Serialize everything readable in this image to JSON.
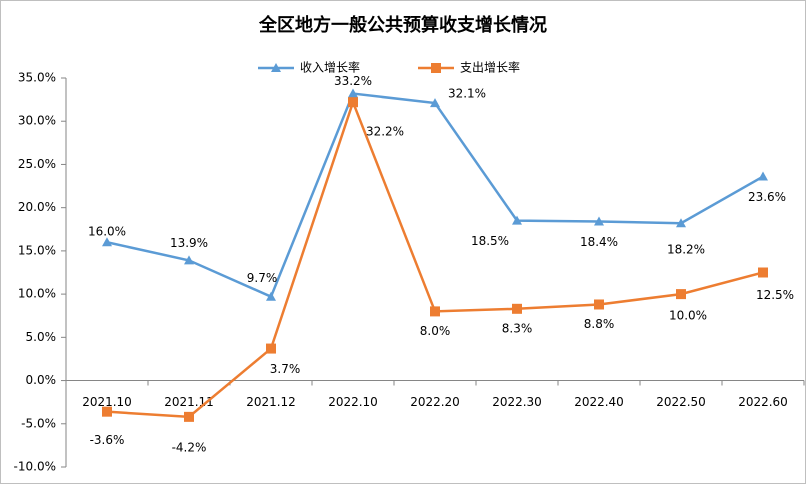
{
  "chart_data": {
    "type": "line",
    "title": "全区地方一般公共预算收支增长情况",
    "categories": [
      "2021.10",
      "2021.11",
      "2021.12",
      "2022.10",
      "2022.20",
      "2022.30",
      "2022.40",
      "2022.50",
      "2022.60"
    ],
    "series": [
      {
        "name": "收入增长率",
        "color": "#5b9bd5",
        "marker": "triangle",
        "values": [
          16.0,
          13.9,
          9.7,
          33.2,
          32.1,
          18.5,
          18.4,
          18.2,
          23.6
        ],
        "value_labels": [
          "16.0%",
          "13.9%",
          "9.7%",
          "33.2%",
          "32.1%",
          "18.5%",
          "18.4%",
          "18.2%",
          "23.6%"
        ]
      },
      {
        "name": "支出增长率",
        "color": "#ed7d31",
        "marker": "square",
        "values": [
          -3.6,
          -4.2,
          3.7,
          32.2,
          8.0,
          8.3,
          8.8,
          10.0,
          12.5
        ],
        "value_labels": [
          "-3.6%",
          "-4.2%",
          "3.7%",
          "32.2%",
          "8.0%",
          "8.3%",
          "8.8%",
          "10.0%",
          "12.5%"
        ]
      }
    ],
    "ylim": [
      -10,
      35
    ],
    "yticks": [
      {
        "value": -10,
        "label": "-10.0%"
      },
      {
        "value": -5,
        "label": "-5.0%"
      },
      {
        "value": 0,
        "label": "0.0%"
      },
      {
        "value": 5,
        "label": "5.0%"
      },
      {
        "value": 10,
        "label": "10.0%"
      },
      {
        "value": 15,
        "label": "15.0%"
      },
      {
        "value": 20,
        "label": "20.0%"
      },
      {
        "value": 25,
        "label": "25.0%"
      },
      {
        "value": 30,
        "label": "30.0%"
      },
      {
        "value": 35,
        "label": "35.0%"
      }
    ],
    "grid": false,
    "legend": "top"
  }
}
